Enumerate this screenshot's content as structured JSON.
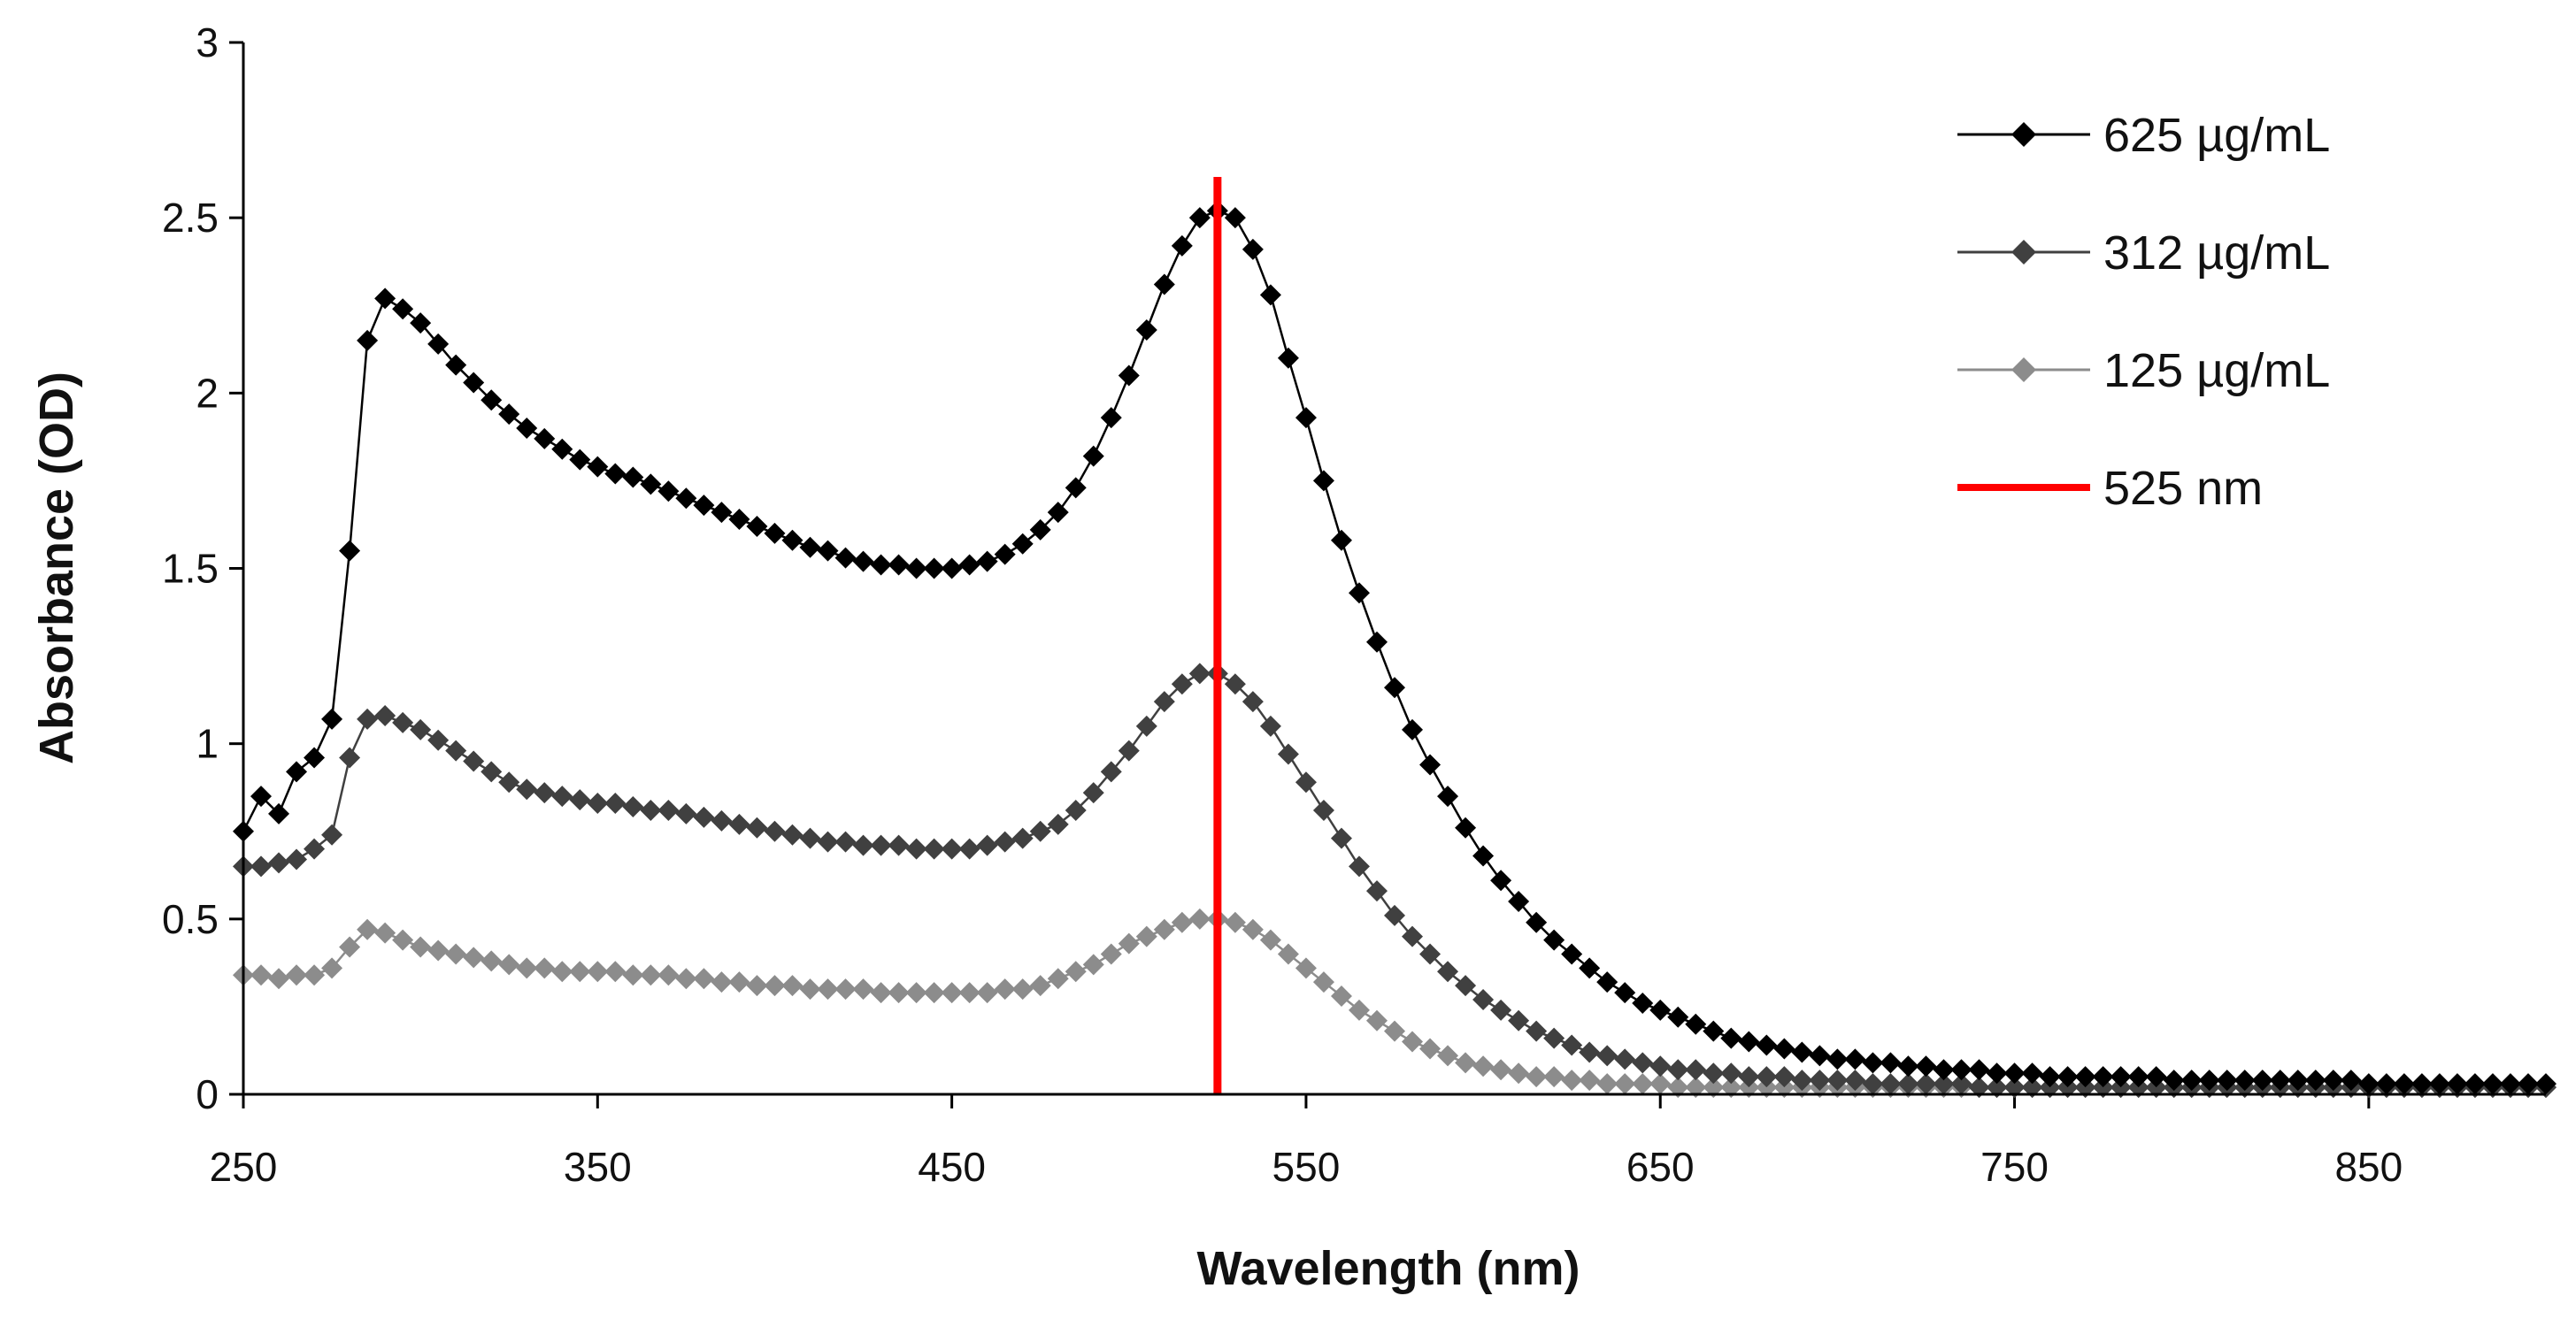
{
  "chart_data": {
    "type": "scatter",
    "title": "",
    "xlabel": "Wavelength (nm)",
    "ylabel": "Absorbance (OD)",
    "xlim": [
      250,
      900
    ],
    "ylim": [
      0,
      3
    ],
    "x_ticks": [
      "250",
      "350",
      "450",
      "550",
      "650",
      "750",
      "850"
    ],
    "y_ticks": [
      "0",
      "0.5",
      "1",
      "1.5",
      "2",
      "2.5",
      "3"
    ],
    "grid": false,
    "legend_position": "top-right",
    "reference_line": {
      "name": "525 nm",
      "x": 525,
      "color": "#ff0000"
    },
    "series": [
      {
        "name": "625 µg/mL",
        "color": "#000000",
        "x": [
          250,
          255,
          260,
          265,
          270,
          275,
          280,
          285,
          290,
          295,
          300,
          305,
          310,
          315,
          320,
          325,
          330,
          335,
          340,
          345,
          350,
          355,
          360,
          365,
          370,
          375,
          380,
          385,
          390,
          395,
          400,
          405,
          410,
          415,
          420,
          425,
          430,
          435,
          440,
          445,
          450,
          455,
          460,
          465,
          470,
          475,
          480,
          485,
          490,
          495,
          500,
          505,
          510,
          515,
          520,
          525,
          530,
          535,
          540,
          545,
          550,
          555,
          560,
          565,
          570,
          575,
          580,
          585,
          590,
          595,
          600,
          605,
          610,
          615,
          620,
          625,
          630,
          635,
          640,
          645,
          650,
          655,
          660,
          665,
          670,
          675,
          680,
          685,
          690,
          695,
          700,
          705,
          710,
          715,
          720,
          725,
          730,
          735,
          740,
          745,
          750,
          755,
          760,
          765,
          770,
          775,
          780,
          785,
          790,
          795,
          800,
          805,
          810,
          815,
          820,
          825,
          830,
          835,
          840,
          845,
          850,
          855,
          860,
          865,
          870,
          875,
          880,
          885,
          890,
          895,
          900
        ],
        "y": [
          0.75,
          0.85,
          0.8,
          0.92,
          0.96,
          1.07,
          1.55,
          2.15,
          2.27,
          2.24,
          2.2,
          2.14,
          2.08,
          2.03,
          1.98,
          1.94,
          1.9,
          1.87,
          1.84,
          1.81,
          1.79,
          1.77,
          1.76,
          1.74,
          1.72,
          1.7,
          1.68,
          1.66,
          1.64,
          1.62,
          1.6,
          1.58,
          1.56,
          1.55,
          1.53,
          1.52,
          1.51,
          1.51,
          1.5,
          1.5,
          1.5,
          1.51,
          1.52,
          1.54,
          1.57,
          1.61,
          1.66,
          1.73,
          1.82,
          1.93,
          2.05,
          2.18,
          2.31,
          2.42,
          2.5,
          2.52,
          2.5,
          2.41,
          2.28,
          2.1,
          1.93,
          1.75,
          1.58,
          1.43,
          1.29,
          1.16,
          1.04,
          0.94,
          0.85,
          0.76,
          0.68,
          0.61,
          0.55,
          0.49,
          0.44,
          0.4,
          0.36,
          0.32,
          0.29,
          0.26,
          0.24,
          0.22,
          0.2,
          0.18,
          0.16,
          0.15,
          0.14,
          0.13,
          0.12,
          0.11,
          0.1,
          0.1,
          0.09,
          0.09,
          0.08,
          0.08,
          0.07,
          0.07,
          0.07,
          0.06,
          0.06,
          0.06,
          0.05,
          0.05,
          0.05,
          0.05,
          0.05,
          0.05,
          0.05,
          0.04,
          0.04,
          0.04,
          0.04,
          0.04,
          0.04,
          0.04,
          0.04,
          0.04,
          0.04,
          0.04,
          0.03,
          0.03,
          0.03,
          0.03,
          0.03,
          0.03,
          0.03,
          0.03,
          0.03,
          0.03,
          0.03
        ]
      },
      {
        "name": "312 µg/mL",
        "color": "#404040",
        "x": [
          250,
          255,
          260,
          265,
          270,
          275,
          280,
          285,
          290,
          295,
          300,
          305,
          310,
          315,
          320,
          325,
          330,
          335,
          340,
          345,
          350,
          355,
          360,
          365,
          370,
          375,
          380,
          385,
          390,
          395,
          400,
          405,
          410,
          415,
          420,
          425,
          430,
          435,
          440,
          445,
          450,
          455,
          460,
          465,
          470,
          475,
          480,
          485,
          490,
          495,
          500,
          505,
          510,
          515,
          520,
          525,
          530,
          535,
          540,
          545,
          550,
          555,
          560,
          565,
          570,
          575,
          580,
          585,
          590,
          595,
          600,
          605,
          610,
          615,
          620,
          625,
          630,
          635,
          640,
          645,
          650,
          655,
          660,
          665,
          670,
          675,
          680,
          685,
          690,
          695,
          700,
          705,
          710,
          715,
          720,
          725,
          730,
          735,
          740,
          745,
          750,
          755,
          760,
          765,
          770,
          775,
          780,
          785,
          790,
          795,
          800,
          805,
          810,
          815,
          820,
          825,
          830,
          835,
          840,
          845,
          850,
          855,
          860,
          865,
          870,
          875,
          880,
          885,
          890,
          895,
          900
        ],
        "y": [
          0.65,
          0.65,
          0.66,
          0.67,
          0.7,
          0.74,
          0.96,
          1.07,
          1.08,
          1.06,
          1.04,
          1.01,
          0.98,
          0.95,
          0.92,
          0.89,
          0.87,
          0.86,
          0.85,
          0.84,
          0.83,
          0.83,
          0.82,
          0.81,
          0.81,
          0.8,
          0.79,
          0.78,
          0.77,
          0.76,
          0.75,
          0.74,
          0.73,
          0.72,
          0.72,
          0.71,
          0.71,
          0.71,
          0.7,
          0.7,
          0.7,
          0.7,
          0.71,
          0.72,
          0.73,
          0.75,
          0.77,
          0.81,
          0.86,
          0.92,
          0.98,
          1.05,
          1.12,
          1.17,
          1.2,
          1.2,
          1.17,
          1.12,
          1.05,
          0.97,
          0.89,
          0.81,
          0.73,
          0.65,
          0.58,
          0.51,
          0.45,
          0.4,
          0.35,
          0.31,
          0.27,
          0.24,
          0.21,
          0.18,
          0.16,
          0.14,
          0.12,
          0.11,
          0.1,
          0.09,
          0.08,
          0.07,
          0.07,
          0.06,
          0.06,
          0.05,
          0.05,
          0.05,
          0.04,
          0.04,
          0.04,
          0.04,
          0.03,
          0.03,
          0.03,
          0.03,
          0.03,
          0.03,
          0.02,
          0.02,
          0.02,
          0.02,
          0.02,
          0.02,
          0.02,
          0.02,
          0.02,
          0.02,
          0.02,
          0.02,
          0.02,
          0.02,
          0.02,
          0.02,
          0.02,
          0.02,
          0.02,
          0.02,
          0.02,
          0.02,
          0.02,
          0.02,
          0.02,
          0.02,
          0.02,
          0.02,
          0.02,
          0.02,
          0.02,
          0.02,
          0.02
        ]
      },
      {
        "name": "125 µg/mL",
        "color": "#8c8c8c",
        "x": [
          250,
          255,
          260,
          265,
          270,
          275,
          280,
          285,
          290,
          295,
          300,
          305,
          310,
          315,
          320,
          325,
          330,
          335,
          340,
          345,
          350,
          355,
          360,
          365,
          370,
          375,
          380,
          385,
          390,
          395,
          400,
          405,
          410,
          415,
          420,
          425,
          430,
          435,
          440,
          445,
          450,
          455,
          460,
          465,
          470,
          475,
          480,
          485,
          490,
          495,
          500,
          505,
          510,
          515,
          520,
          525,
          530,
          535,
          540,
          545,
          550,
          555,
          560,
          565,
          570,
          575,
          580,
          585,
          590,
          595,
          600,
          605,
          610,
          615,
          620,
          625,
          630,
          635,
          640,
          645,
          650,
          655,
          660,
          665,
          670,
          675,
          680,
          685,
          690,
          695,
          700,
          705,
          710,
          715,
          720,
          725,
          730,
          735,
          740,
          745,
          750,
          755,
          760,
          765,
          770,
          775,
          780,
          785,
          790,
          795,
          800,
          805,
          810,
          815,
          820,
          825,
          830,
          835,
          840,
          845,
          850,
          855,
          860,
          865,
          870,
          875,
          880,
          885,
          890,
          895,
          900
        ],
        "y": [
          0.34,
          0.34,
          0.33,
          0.34,
          0.34,
          0.36,
          0.42,
          0.47,
          0.46,
          0.44,
          0.42,
          0.41,
          0.4,
          0.39,
          0.38,
          0.37,
          0.36,
          0.36,
          0.35,
          0.35,
          0.35,
          0.35,
          0.34,
          0.34,
          0.34,
          0.33,
          0.33,
          0.32,
          0.32,
          0.31,
          0.31,
          0.31,
          0.3,
          0.3,
          0.3,
          0.3,
          0.29,
          0.29,
          0.29,
          0.29,
          0.29,
          0.29,
          0.29,
          0.3,
          0.3,
          0.31,
          0.33,
          0.35,
          0.37,
          0.4,
          0.43,
          0.45,
          0.47,
          0.49,
          0.5,
          0.5,
          0.49,
          0.47,
          0.44,
          0.4,
          0.36,
          0.32,
          0.28,
          0.24,
          0.21,
          0.18,
          0.15,
          0.13,
          0.11,
          0.09,
          0.08,
          0.07,
          0.06,
          0.05,
          0.05,
          0.04,
          0.04,
          0.03,
          0.03,
          0.03,
          0.03,
          0.02,
          0.02,
          0.02,
          0.02,
          0.02,
          0.02,
          0.02,
          0.02,
          0.02,
          0.02,
          0.02,
          0.02,
          0.02,
          0.02,
          0.02,
          0.02,
          0.02,
          0.02,
          0.02,
          0.02,
          0.02,
          0.02,
          0.02,
          0.02,
          0.02,
          0.02,
          0.02,
          0.02,
          0.02,
          0.02,
          0.02,
          0.02,
          0.02,
          0.02,
          0.02,
          0.02,
          0.02,
          0.02,
          0.02,
          0.02,
          0.02,
          0.02,
          0.02,
          0.02,
          0.02,
          0.02,
          0.02,
          0.02,
          0.02,
          0.02
        ]
      }
    ]
  }
}
